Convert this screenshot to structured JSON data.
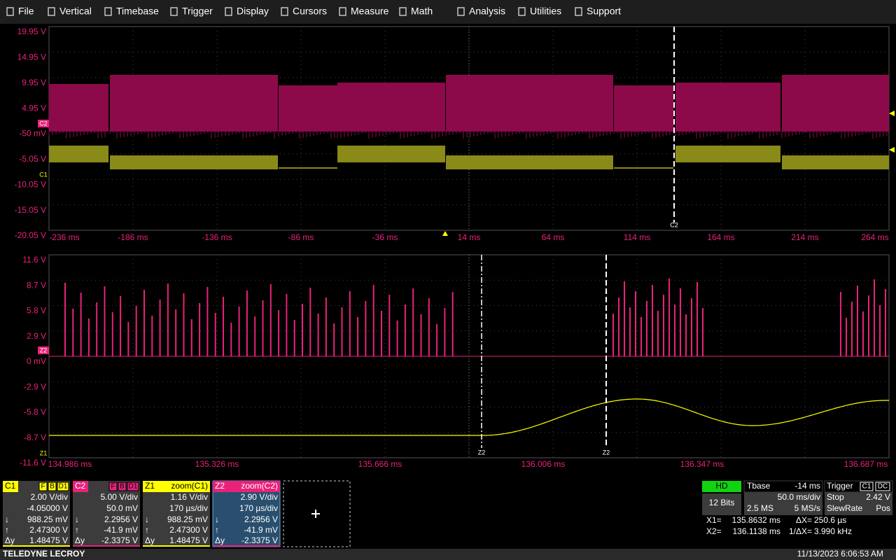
{
  "menu": [
    "File",
    "Vertical",
    "Timebase",
    "Trigger",
    "Display",
    "Cursors",
    "Measure",
    "Math",
    "Analysis",
    "Utilities",
    "Support"
  ],
  "upper_plot": {
    "y_labels": [
      "19.95 V",
      "14.95 V",
      "9.95 V",
      "4.95 V",
      "-50 mV",
      "-5.05 V",
      "-10.05 V",
      "-15.05 V",
      "-20.05 V"
    ],
    "x_labels": [
      "-236 ms",
      "-186 ms",
      "-136 ms",
      "-86 ms",
      "-36 ms",
      "14 ms",
      "64 ms",
      "114 ms",
      "164 ms",
      "214 ms",
      "264 ms"
    ],
    "channel_markers": [
      "C2",
      "C1"
    ],
    "cursor_label": "C2"
  },
  "lower_plot": {
    "y_labels": [
      "11.6 V",
      "8.7 V",
      "5.8 V",
      "2.9 V",
      "0 mV",
      "-2.9 V",
      "-5.8 V",
      "-8.7 V",
      "-11.6 V"
    ],
    "x_labels": [
      "134.986 ms",
      "135.326 ms",
      "135.666 ms",
      "136.006 ms",
      "136.347 ms",
      "136.687 ms"
    ],
    "channel_markers": [
      "Z2",
      "Z1"
    ],
    "cursor_labels": [
      "Z2",
      "Z2"
    ]
  },
  "channels": [
    {
      "name": "C1",
      "badges": [
        "F",
        "B",
        "D1"
      ],
      "scale": "2.00 V/div",
      "offset": "-4.05000 V",
      "cursor_rows": [
        [
          "↓",
          "988.25 mV"
        ],
        [
          "↑",
          "2.47300 V"
        ],
        [
          "Δy",
          "1.48475 V"
        ]
      ]
    },
    {
      "name": "C2",
      "badges": [
        "F",
        "B",
        "D1"
      ],
      "scale": "5.00 V/div",
      "offset": "50.0 mV",
      "cursor_rows": [
        [
          "↓",
          "2.2956 V"
        ],
        [
          "↑",
          "-41.9 mV"
        ],
        [
          "Δy",
          "-2.3375 V"
        ]
      ]
    },
    {
      "name": "Z1",
      "source": "zoom(C1)",
      "scale": "1.16 V/div",
      "offset": "170 µs/div",
      "cursor_rows": [
        [
          "↓",
          "988.25 mV"
        ],
        [
          "↑",
          "2.47300 V"
        ],
        [
          "Δy",
          "1.48475 V"
        ]
      ]
    },
    {
      "name": "Z2",
      "source": "zoom(C2)",
      "scale": "2.90 V/div",
      "offset": "170 µs/div",
      "cursor_rows": [
        [
          "↓",
          "2.2956 V"
        ],
        [
          "↑",
          "-41.9 mV"
        ],
        [
          "Δy",
          "-2.3375 V"
        ]
      ]
    }
  ],
  "timebase": {
    "mode": "HD",
    "bits": "12 Bits",
    "title": "Tbase",
    "delay": "-14 ms",
    "scale": "50.0 ms/div",
    "samples": "2.5 MS",
    "rate": "5 MS/s"
  },
  "trigger": {
    "title": "Trigger",
    "source": "C1",
    "coupling": "DC",
    "state": "Stop",
    "level": "2.42 V",
    "type": "SlewRate",
    "slope": "Pos"
  },
  "cursors": [
    [
      "X1=",
      "135.8632 ms",
      "ΔX=",
      "250.6 µs"
    ],
    [
      "X2=",
      "136.1138 ms",
      "1/ΔX=",
      "3.990 kHz"
    ]
  ],
  "footer": {
    "brand": "TELEDYNE LECROY",
    "timestamp": "11/13/2023 6:06:53 AM"
  }
}
